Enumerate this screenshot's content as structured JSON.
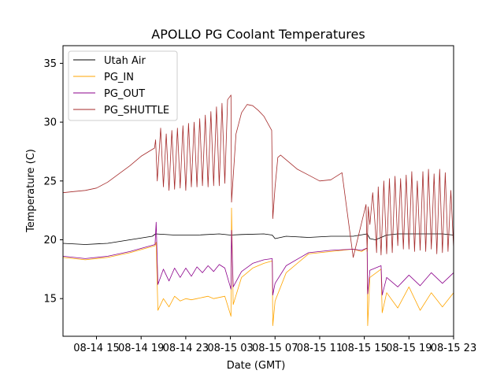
{
  "chart_data": {
    "type": "line",
    "title": "APOLLO PG Coolant Temperatures",
    "xlabel": "Date (GMT)",
    "ylabel": "Temperature (C)",
    "xlim": [
      0,
      70
    ],
    "ylim": [
      11.8,
      36.5
    ],
    "x_ticks": [
      {
        "value": 6,
        "label": "08-14 15"
      },
      {
        "value": 14,
        "label": "08-14 19"
      },
      {
        "value": 22,
        "label": "08-14 23"
      },
      {
        "value": 30,
        "label": "08-15 03"
      },
      {
        "value": 38,
        "label": "08-15 07"
      },
      {
        "value": 46,
        "label": "08-15 11"
      },
      {
        "value": 54,
        "label": "08-15 15"
      },
      {
        "value": 62,
        "label": "08-15 19"
      },
      {
        "value": 70,
        "label": "08-15 23"
      }
    ],
    "y_ticks": [
      {
        "value": 15,
        "label": "15"
      },
      {
        "value": 20,
        "label": "20"
      },
      {
        "value": 25,
        "label": "25"
      },
      {
        "value": 30,
        "label": "30"
      },
      {
        "value": 35,
        "label": "35"
      }
    ],
    "legend_position": "top-left",
    "series": [
      {
        "name": "Utah Air",
        "color": "#000000",
        "x": [
          0,
          4,
          8,
          12,
          16,
          16.6,
          20,
          24,
          28,
          30,
          32,
          36,
          37.5,
          38,
          40,
          44,
          48,
          52,
          54.5,
          55,
          56,
          58,
          60,
          64,
          68,
          70
        ],
        "y": [
          19.7,
          19.6,
          19.7,
          20.0,
          20.3,
          20.5,
          20.4,
          20.4,
          20.5,
          20.4,
          20.45,
          20.5,
          20.4,
          20.1,
          20.3,
          20.2,
          20.3,
          20.3,
          20.5,
          20.1,
          20.0,
          20.4,
          20.5,
          20.5,
          20.5,
          20.4
        ]
      },
      {
        "name": "PG_IN",
        "color": "#ffa500",
        "x": [
          0,
          4,
          8,
          12,
          16.5,
          16.7,
          17,
          18,
          19,
          20,
          21,
          22,
          23,
          24,
          25,
          26,
          27,
          28,
          29,
          30.1,
          30.2,
          30.5,
          32,
          34,
          36,
          37.5,
          37.6,
          38,
          40,
          44,
          48,
          52,
          53.5,
          54.5,
          54.6,
          55,
          57,
          57.2,
          58,
          60,
          62,
          64,
          66,
          68,
          70
        ],
        "y": [
          18.5,
          18.3,
          18.5,
          18.9,
          19.5,
          19.8,
          14.0,
          15.0,
          14.3,
          15.2,
          14.8,
          15.0,
          14.9,
          15.0,
          15.1,
          15.2,
          15.0,
          15.1,
          15.2,
          13.5,
          22.7,
          14.5,
          16.8,
          17.6,
          18.0,
          18.2,
          12.7,
          14.8,
          17.2,
          18.8,
          19.0,
          19.2,
          19.0,
          19.3,
          12.7,
          16.8,
          17.5,
          13.8,
          15.5,
          14.2,
          16.0,
          14.0,
          15.5,
          14.3,
          15.5
        ]
      },
      {
        "name": "PG_OUT",
        "color": "#8b008b",
        "x": [
          0,
          4,
          8,
          12,
          16.5,
          16.7,
          17,
          18,
          19,
          20,
          21,
          22,
          23,
          24,
          25,
          26,
          27,
          28,
          29,
          30.1,
          30.2,
          30.5,
          32,
          34,
          36,
          37.5,
          37.6,
          38,
          40,
          44,
          48,
          52,
          53.5,
          54.5,
          54.6,
          55,
          57,
          57.2,
          58,
          60,
          62,
          64,
          66,
          68,
          70
        ],
        "y": [
          18.6,
          18.4,
          18.6,
          19.0,
          19.6,
          21.5,
          16.2,
          17.5,
          16.5,
          17.6,
          16.8,
          17.6,
          16.9,
          17.7,
          17.2,
          17.8,
          17.3,
          17.9,
          17.6,
          15.8,
          20.8,
          16.0,
          17.3,
          18.0,
          18.3,
          18.4,
          15.3,
          16.3,
          17.8,
          18.9,
          19.1,
          19.2,
          19.1,
          19.3,
          15.4,
          17.4,
          17.8,
          15.3,
          16.8,
          16.0,
          17.0,
          16.1,
          17.2,
          16.3,
          17.2
        ]
      },
      {
        "name": "PG_SHUTTLE",
        "color": "#a52a2a",
        "x": [
          0,
          2,
          4,
          6,
          8,
          10,
          12,
          14,
          16.4,
          16.6,
          16.9,
          17.5,
          18,
          18.5,
          19,
          19.5,
          20,
          20.5,
          21,
          21.5,
          22,
          22.5,
          23,
          23.5,
          24,
          24.5,
          25,
          25.5,
          26,
          26.5,
          27,
          27.5,
          28,
          28.5,
          29,
          29.5,
          30.1,
          30.2,
          31,
          32,
          33,
          34,
          35,
          36,
          37.4,
          37.6,
          38,
          38.5,
          39,
          40,
          42,
          44,
          46,
          48,
          50,
          52,
          54.3,
          54.5,
          54.7,
          55,
          55.5,
          56,
          56.2,
          56.5,
          57,
          57.5,
          58,
          58.5,
          59,
          59.5,
          60,
          60.5,
          61,
          61.5,
          62,
          62.5,
          63,
          63.5,
          64,
          64.5,
          65,
          65.5,
          66,
          66.5,
          67,
          67.5,
          68,
          68.5,
          69,
          69.5,
          70
        ],
        "y": [
          24.0,
          24.1,
          24.2,
          24.4,
          24.9,
          25.6,
          26.3,
          27.1,
          27.8,
          28.5,
          25.0,
          29.5,
          24.5,
          29.0,
          24.2,
          29.3,
          24.3,
          29.5,
          24.4,
          29.7,
          24.2,
          29.9,
          24.5,
          30.0,
          24.5,
          30.3,
          24.6,
          30.6,
          24.5,
          30.9,
          24.6,
          31.3,
          24.6,
          31.6,
          24.8,
          31.9,
          32.3,
          23.2,
          29.0,
          30.8,
          31.5,
          31.4,
          31.0,
          30.5,
          29.3,
          21.8,
          24.5,
          27.0,
          27.2,
          26.8,
          26.0,
          25.5,
          25.0,
          25.1,
          25.7,
          18.5,
          23.0,
          19.0,
          22.8,
          21.3,
          24.0,
          20.8,
          18.9,
          24.5,
          18.7,
          25.0,
          18.8,
          25.2,
          18.9,
          25.4,
          19.5,
          25.2,
          19.2,
          25.5,
          19.2,
          25.8,
          19.0,
          25.0,
          19.1,
          25.8,
          19.0,
          26.0,
          19.2,
          25.6,
          18.8,
          26.0,
          18.9,
          25.7,
          19.0,
          24.2,
          19.3
        ]
      }
    ]
  }
}
